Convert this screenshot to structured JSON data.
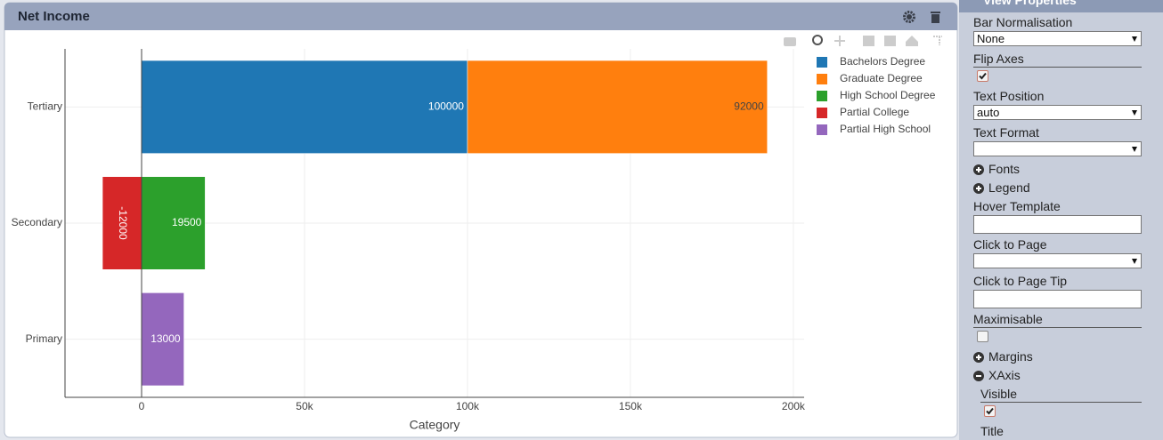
{
  "chart_data": {
    "type": "hbar-stacked",
    "title": "Net Income",
    "xlabel": "Category",
    "categories": [
      "Tertiary",
      "Secondary",
      "Primary"
    ],
    "series": [
      {
        "name": "Bachelors Degree",
        "color": "#1f77b4",
        "values": [
          100000,
          null,
          null
        ]
      },
      {
        "name": "Graduate Degree",
        "color": "#ff7f0e",
        "values": [
          92000,
          null,
          null
        ]
      },
      {
        "name": "High School Degree",
        "color": "#2ca02c",
        "values": [
          null,
          19500,
          null
        ]
      },
      {
        "name": "Partial College",
        "color": "#d62728",
        "values": [
          null,
          -12000,
          null
        ]
      },
      {
        "name": "Partial High School",
        "color": "#9467bd",
        "values": [
          null,
          null,
          13000
        ]
      }
    ],
    "xlim": [
      -23500,
      203300
    ],
    "xticks": [
      0,
      {
        "value": 50000,
        "label": "50k"
      },
      {
        "value": 100000,
        "label": "100k"
      },
      {
        "value": 150000,
        "label": "150k"
      },
      {
        "value": 200000,
        "label": "200k"
      }
    ],
    "grid": true,
    "legend": "right"
  },
  "panel": {
    "title": "View Properties",
    "fields": [
      {
        "label": "Bar Normalisation",
        "control": "select",
        "value": "None"
      },
      {
        "label": "Flip Axes",
        "control": "checkbox",
        "checked": true
      },
      {
        "label": "Text Position",
        "control": "select",
        "value": "auto"
      },
      {
        "label": "Text Format",
        "control": "select"
      },
      {
        "label": "Fonts",
        "control": "expander",
        "expanded": false
      },
      {
        "label": "Legend",
        "control": "expander",
        "expanded": false
      },
      {
        "label": "Hover Template",
        "control": "input"
      },
      {
        "label": "Click to Page",
        "control": "select"
      },
      {
        "label": "Click to Page Tip",
        "control": "input"
      },
      {
        "label": "Maximisable",
        "control": "checkbox",
        "checked": false
      },
      {
        "label": "Margins",
        "control": "expander",
        "expanded": false
      },
      {
        "label": "XAxis",
        "control": "expander",
        "expanded": true,
        "children": [
          {
            "label": "Visible",
            "control": "checkbox",
            "checked": true
          },
          {
            "label": "Title",
            "control": "input"
          }
        ]
      }
    ]
  }
}
